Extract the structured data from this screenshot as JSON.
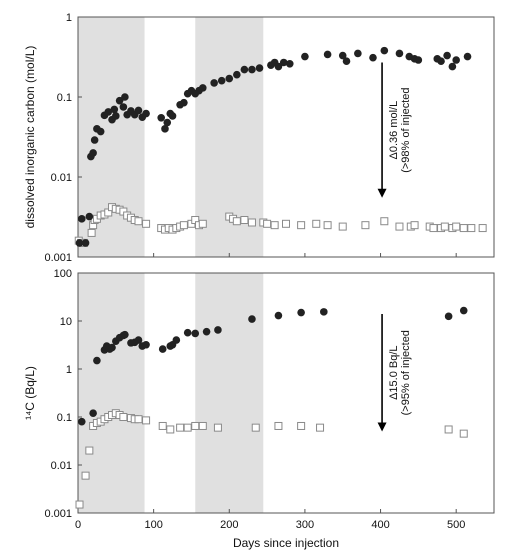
{
  "figure": {
    "xlabel": "Days since injection",
    "shade_color": "#e0e0e0",
    "filled_color": "#222222",
    "open_color": "#8a8a8a"
  },
  "chart_data": [
    {
      "type": "scatter",
      "ylabel": "dissolved inorganic carbon (mol/L)",
      "yscale": "log",
      "xlim": [
        0,
        550
      ],
      "ylim": [
        0.001,
        1
      ],
      "xticks": [
        0,
        100,
        200,
        300,
        400,
        500
      ],
      "yticks": [
        {
          "value": 0.001,
          "label": "0.001"
        },
        {
          "value": 0.01,
          "label": "0.01"
        },
        {
          "value": 0.1,
          "label": "0.1"
        },
        {
          "value": 1,
          "label": "1"
        }
      ],
      "shaded_x_ranges": [
        [
          0,
          88
        ],
        [
          155,
          245
        ]
      ],
      "annotation": {
        "x": 402,
        "line1": "Δ0.36 mol/L",
        "line2": "(>98% of injected",
        "y_from": 0.27,
        "y_to": 0.0055
      },
      "series": [
        {
          "marker": "filled-circle",
          "points": [
            [
              2,
              0.0015
            ],
            [
              5,
              0.003
            ],
            [
              10,
              0.0015
            ],
            [
              15,
              0.0032
            ],
            [
              17,
              0.018
            ],
            [
              20,
              0.02
            ],
            [
              22,
              0.029
            ],
            [
              25,
              0.04
            ],
            [
              30,
              0.037
            ],
            [
              35,
              0.059
            ],
            [
              40,
              0.065
            ],
            [
              45,
              0.052
            ],
            [
              48,
              0.07
            ],
            [
              50,
              0.058
            ],
            [
              55,
              0.09
            ],
            [
              60,
              0.075
            ],
            [
              62,
              0.1
            ],
            [
              65,
              0.06
            ],
            [
              70,
              0.067
            ],
            [
              75,
              0.06
            ],
            [
              80,
              0.068
            ],
            [
              85,
              0.056
            ],
            [
              90,
              0.062
            ],
            [
              110,
              0.055
            ],
            [
              115,
              0.04
            ],
            [
              118,
              0.048
            ],
            [
              122,
              0.062
            ],
            [
              125,
              0.058
            ],
            [
              135,
              0.08
            ],
            [
              140,
              0.085
            ],
            [
              145,
              0.11
            ],
            [
              150,
              0.12
            ],
            [
              155,
              0.11
            ],
            [
              160,
              0.12
            ],
            [
              165,
              0.13
            ],
            [
              180,
              0.15
            ],
            [
              190,
              0.16
            ],
            [
              200,
              0.17
            ],
            [
              210,
              0.19
            ],
            [
              220,
              0.22
            ],
            [
              230,
              0.22
            ],
            [
              240,
              0.23
            ],
            [
              255,
              0.25
            ],
            [
              260,
              0.27
            ],
            [
              265,
              0.24
            ],
            [
              272,
              0.27
            ],
            [
              280,
              0.26
            ],
            [
              300,
              0.32
            ],
            [
              330,
              0.34
            ],
            [
              350,
              0.33
            ],
            [
              355,
              0.28
            ],
            [
              370,
              0.35
            ],
            [
              390,
              0.31
            ],
            [
              405,
              0.38
            ],
            [
              425,
              0.35
            ],
            [
              438,
              0.32
            ],
            [
              445,
              0.3
            ],
            [
              450,
              0.29
            ],
            [
              475,
              0.3
            ],
            [
              480,
              0.28
            ],
            [
              488,
              0.33
            ],
            [
              495,
              0.24
            ],
            [
              500,
              0.29
            ],
            [
              515,
              0.32
            ]
          ]
        },
        {
          "marker": "open-square",
          "points": [
            [
              1,
              0.0016
            ],
            [
              4,
              0.0015
            ],
            [
              8,
              0.0015
            ],
            [
              18,
              0.002
            ],
            [
              20,
              0.0025
            ],
            [
              22,
              0.0029
            ],
            [
              25,
              0.003
            ],
            [
              30,
              0.0033
            ],
            [
              35,
              0.0034
            ],
            [
              40,
              0.0036
            ],
            [
              45,
              0.0042
            ],
            [
              50,
              0.004
            ],
            [
              55,
              0.0039
            ],
            [
              60,
              0.0037
            ],
            [
              65,
              0.0033
            ],
            [
              70,
              0.0031
            ],
            [
              75,
              0.0029
            ],
            [
              80,
              0.0028
            ],
            [
              90,
              0.0026
            ],
            [
              110,
              0.0023
            ],
            [
              115,
              0.0022
            ],
            [
              120,
              0.0023
            ],
            [
              125,
              0.0022
            ],
            [
              130,
              0.0023
            ],
            [
              135,
              0.0024
            ],
            [
              140,
              0.0025
            ],
            [
              150,
              0.0026
            ],
            [
              155,
              0.0029
            ],
            [
              160,
              0.0025
            ],
            [
              165,
              0.0026
            ],
            [
              200,
              0.0032
            ],
            [
              205,
              0.003
            ],
            [
              210,
              0.0028
            ],
            [
              220,
              0.0029
            ],
            [
              230,
              0.0027
            ],
            [
              245,
              0.0027
            ],
            [
              250,
              0.0026
            ],
            [
              260,
              0.0025
            ],
            [
              275,
              0.0026
            ],
            [
              295,
              0.0025
            ],
            [
              315,
              0.0026
            ],
            [
              330,
              0.0025
            ],
            [
              350,
              0.0024
            ],
            [
              380,
              0.0025
            ],
            [
              405,
              0.0028
            ],
            [
              425,
              0.0024
            ],
            [
              440,
              0.0024
            ],
            [
              445,
              0.0025
            ],
            [
              465,
              0.0024
            ],
            [
              470,
              0.0023
            ],
            [
              480,
              0.0023
            ],
            [
              485,
              0.0024
            ],
            [
              495,
              0.0023
            ],
            [
              500,
              0.0024
            ],
            [
              510,
              0.0023
            ],
            [
              520,
              0.0023
            ],
            [
              535,
              0.0023
            ]
          ]
        }
      ]
    },
    {
      "type": "scatter",
      "ylabel": "¹⁴C (Bq/L)",
      "yscale": "log",
      "xlim": [
        0,
        550
      ],
      "ylim": [
        0.001,
        100
      ],
      "xticks": [
        0,
        100,
        200,
        300,
        400,
        500
      ],
      "yticks": [
        {
          "value": 0.001,
          "label": "0.001"
        },
        {
          "value": 0.01,
          "label": "0.01"
        },
        {
          "value": 0.1,
          "label": "0.1"
        },
        {
          "value": 1,
          "label": "1"
        },
        {
          "value": 10,
          "label": "10"
        },
        {
          "value": 100,
          "label": "100"
        }
      ],
      "shaded_x_ranges": [
        [
          0,
          88
        ],
        [
          155,
          245
        ]
      ],
      "annotation": {
        "x": 402,
        "line1": "Δ15.0 Bq/L",
        "line2": "(>95% of injected",
        "y_from": 14,
        "y_to": 0.05
      },
      "series": [
        {
          "marker": "filled-circle",
          "points": [
            [
              5,
              0.08
            ],
            [
              20,
              0.12
            ],
            [
              25,
              1.5
            ],
            [
              35,
              2.5
            ],
            [
              38,
              3
            ],
            [
              42,
              2.6
            ],
            [
              45,
              2.8
            ],
            [
              50,
              3.8
            ],
            [
              55,
              4.5
            ],
            [
              60,
              5
            ],
            [
              62,
              5.2
            ],
            [
              70,
              3.5
            ],
            [
              75,
              3.6
            ],
            [
              80,
              4
            ],
            [
              85,
              3
            ],
            [
              90,
              3.2
            ],
            [
              112,
              2.6
            ],
            [
              122,
              3
            ],
            [
              125,
              3.2
            ],
            [
              130,
              4
            ],
            [
              145,
              5.7
            ],
            [
              155,
              5.5
            ],
            [
              170,
              6
            ],
            [
              185,
              6.5
            ],
            [
              230,
              11
            ],
            [
              265,
              13
            ],
            [
              295,
              15
            ],
            [
              325,
              15.5
            ],
            [
              490,
              12.5
            ],
            [
              510,
              16.5
            ]
          ]
        },
        {
          "marker": "open-square",
          "points": [
            [
              2,
              0.0015
            ],
            [
              10,
              0.006
            ],
            [
              15,
              0.02
            ],
            [
              20,
              0.065
            ],
            [
              25,
              0.075
            ],
            [
              30,
              0.08
            ],
            [
              35,
              0.09
            ],
            [
              40,
              0.1
            ],
            [
              45,
              0.11
            ],
            [
              50,
              0.12
            ],
            [
              55,
              0.11
            ],
            [
              60,
              0.1
            ],
            [
              70,
              0.095
            ],
            [
              75,
              0.09
            ],
            [
              80,
              0.09
            ],
            [
              90,
              0.085
            ],
            [
              112,
              0.065
            ],
            [
              122,
              0.055
            ],
            [
              135,
              0.06
            ],
            [
              145,
              0.06
            ],
            [
              155,
              0.065
            ],
            [
              165,
              0.065
            ],
            [
              185,
              0.06
            ],
            [
              235,
              0.06
            ],
            [
              265,
              0.065
            ],
            [
              295,
              0.065
            ],
            [
              320,
              0.06
            ],
            [
              490,
              0.055
            ],
            [
              510,
              0.045
            ]
          ]
        }
      ]
    }
  ]
}
